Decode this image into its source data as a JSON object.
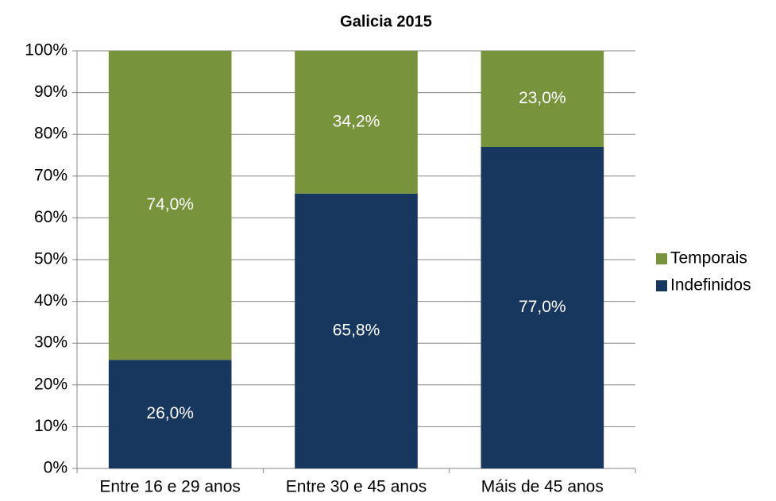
{
  "chart_data": {
    "type": "stacked_bar",
    "title": "Galicia 2015",
    "categories": [
      "Entre 16 e 29 anos",
      "Entre 30 e 45 anos",
      "Máis de 45 anos"
    ],
    "series": [
      {
        "name": "Indefinidos",
        "color": "#17375e",
        "values": [
          26.0,
          65.8,
          77.0
        ],
        "value_labels": [
          "26,0%",
          "65,8%",
          "77,0%"
        ]
      },
      {
        "name": "Temporais",
        "color": "#77933c",
        "values": [
          74.0,
          34.2,
          23.0
        ],
        "value_labels": [
          "74,0%",
          "34,2%",
          "23,0%"
        ]
      }
    ],
    "ylim": [
      0,
      100
    ],
    "yticks": [
      {
        "value": 0,
        "label": "0%"
      },
      {
        "value": 10,
        "label": "10%"
      },
      {
        "value": 20,
        "label": "20%"
      },
      {
        "value": 30,
        "label": "30%"
      },
      {
        "value": 40,
        "label": "40%"
      },
      {
        "value": 50,
        "label": "50%"
      },
      {
        "value": 60,
        "label": "60%"
      },
      {
        "value": 70,
        "label": "70%"
      },
      {
        "value": 80,
        "label": "80%"
      },
      {
        "value": 90,
        "label": "90%"
      },
      {
        "value": 100,
        "label": "100%"
      }
    ],
    "grid": true,
    "legend": "right"
  }
}
